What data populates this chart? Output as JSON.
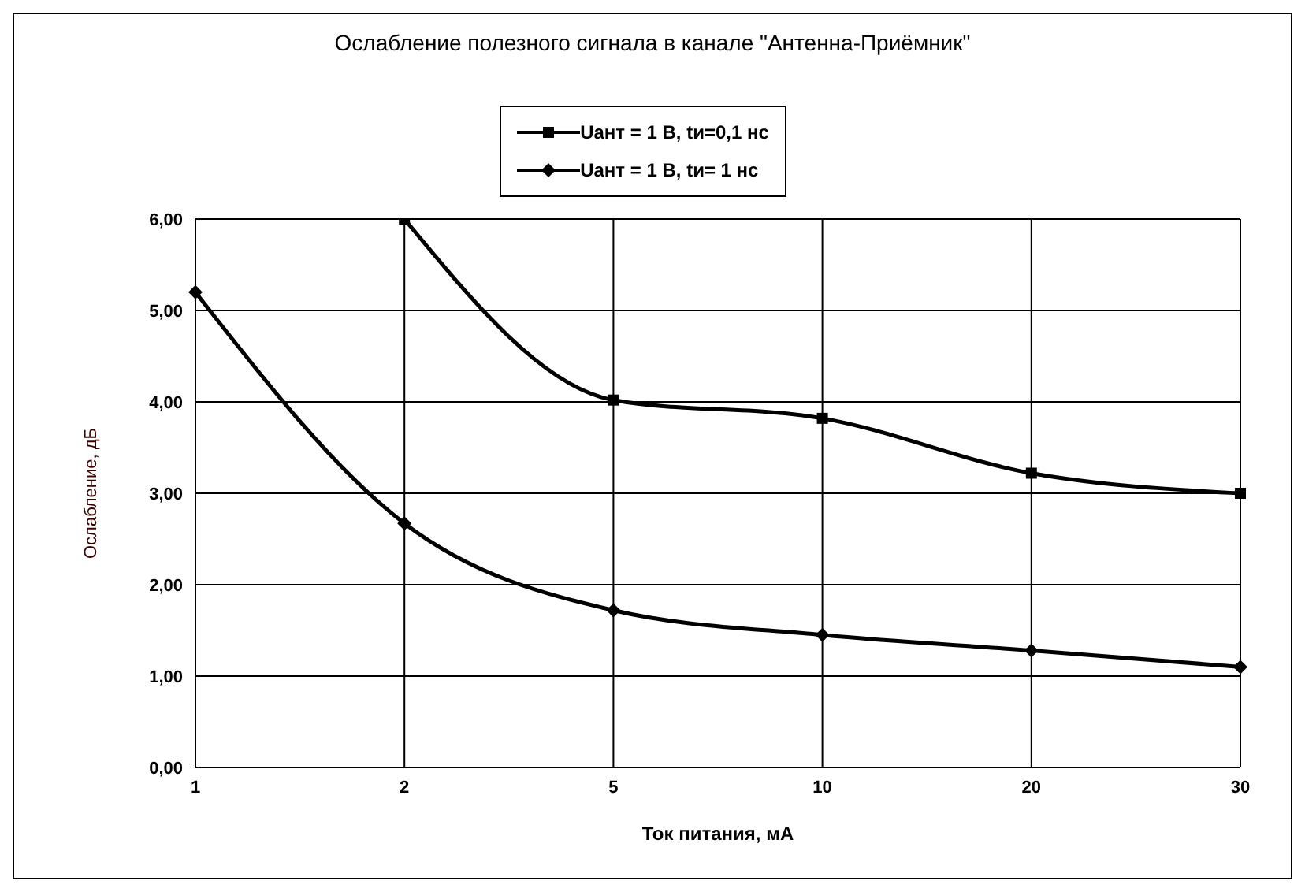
{
  "chart_data": {
    "type": "line",
    "title": "Ослабление полезного сигнала в канале \"Антенна-Приёмник\"",
    "xlabel": "Ток питания, мА",
    "ylabel": "Ослабление, дБ",
    "categories": [
      "1",
      "2",
      "5",
      "10",
      "20",
      "30"
    ],
    "series": [
      {
        "name": "Uант = 1 В, tи= 1 нс",
        "color": "#000000",
        "marker": "diamond",
        "values": [
          5.2,
          2.67,
          1.72,
          1.45,
          1.28,
          1.1
        ]
      },
      {
        "name": "Uант = 1 В,  tи=0,1 нс",
        "color": "#000000",
        "marker": "square",
        "values": [
          null,
          6.0,
          4.02,
          3.82,
          3.22,
          3.0
        ]
      }
    ],
    "ylim": [
      0,
      6
    ],
    "yticks": [
      {
        "value": 0,
        "label": "0,00"
      },
      {
        "value": 1,
        "label": "1,00"
      },
      {
        "value": 2,
        "label": "2,00"
      },
      {
        "value": 3,
        "label": "3,00"
      },
      {
        "value": 4,
        "label": "4,00"
      },
      {
        "value": 5,
        "label": "5,00"
      },
      {
        "value": 6,
        "label": "6,00"
      }
    ],
    "grid": true,
    "legend": "top",
    "line_style": "solid"
  }
}
